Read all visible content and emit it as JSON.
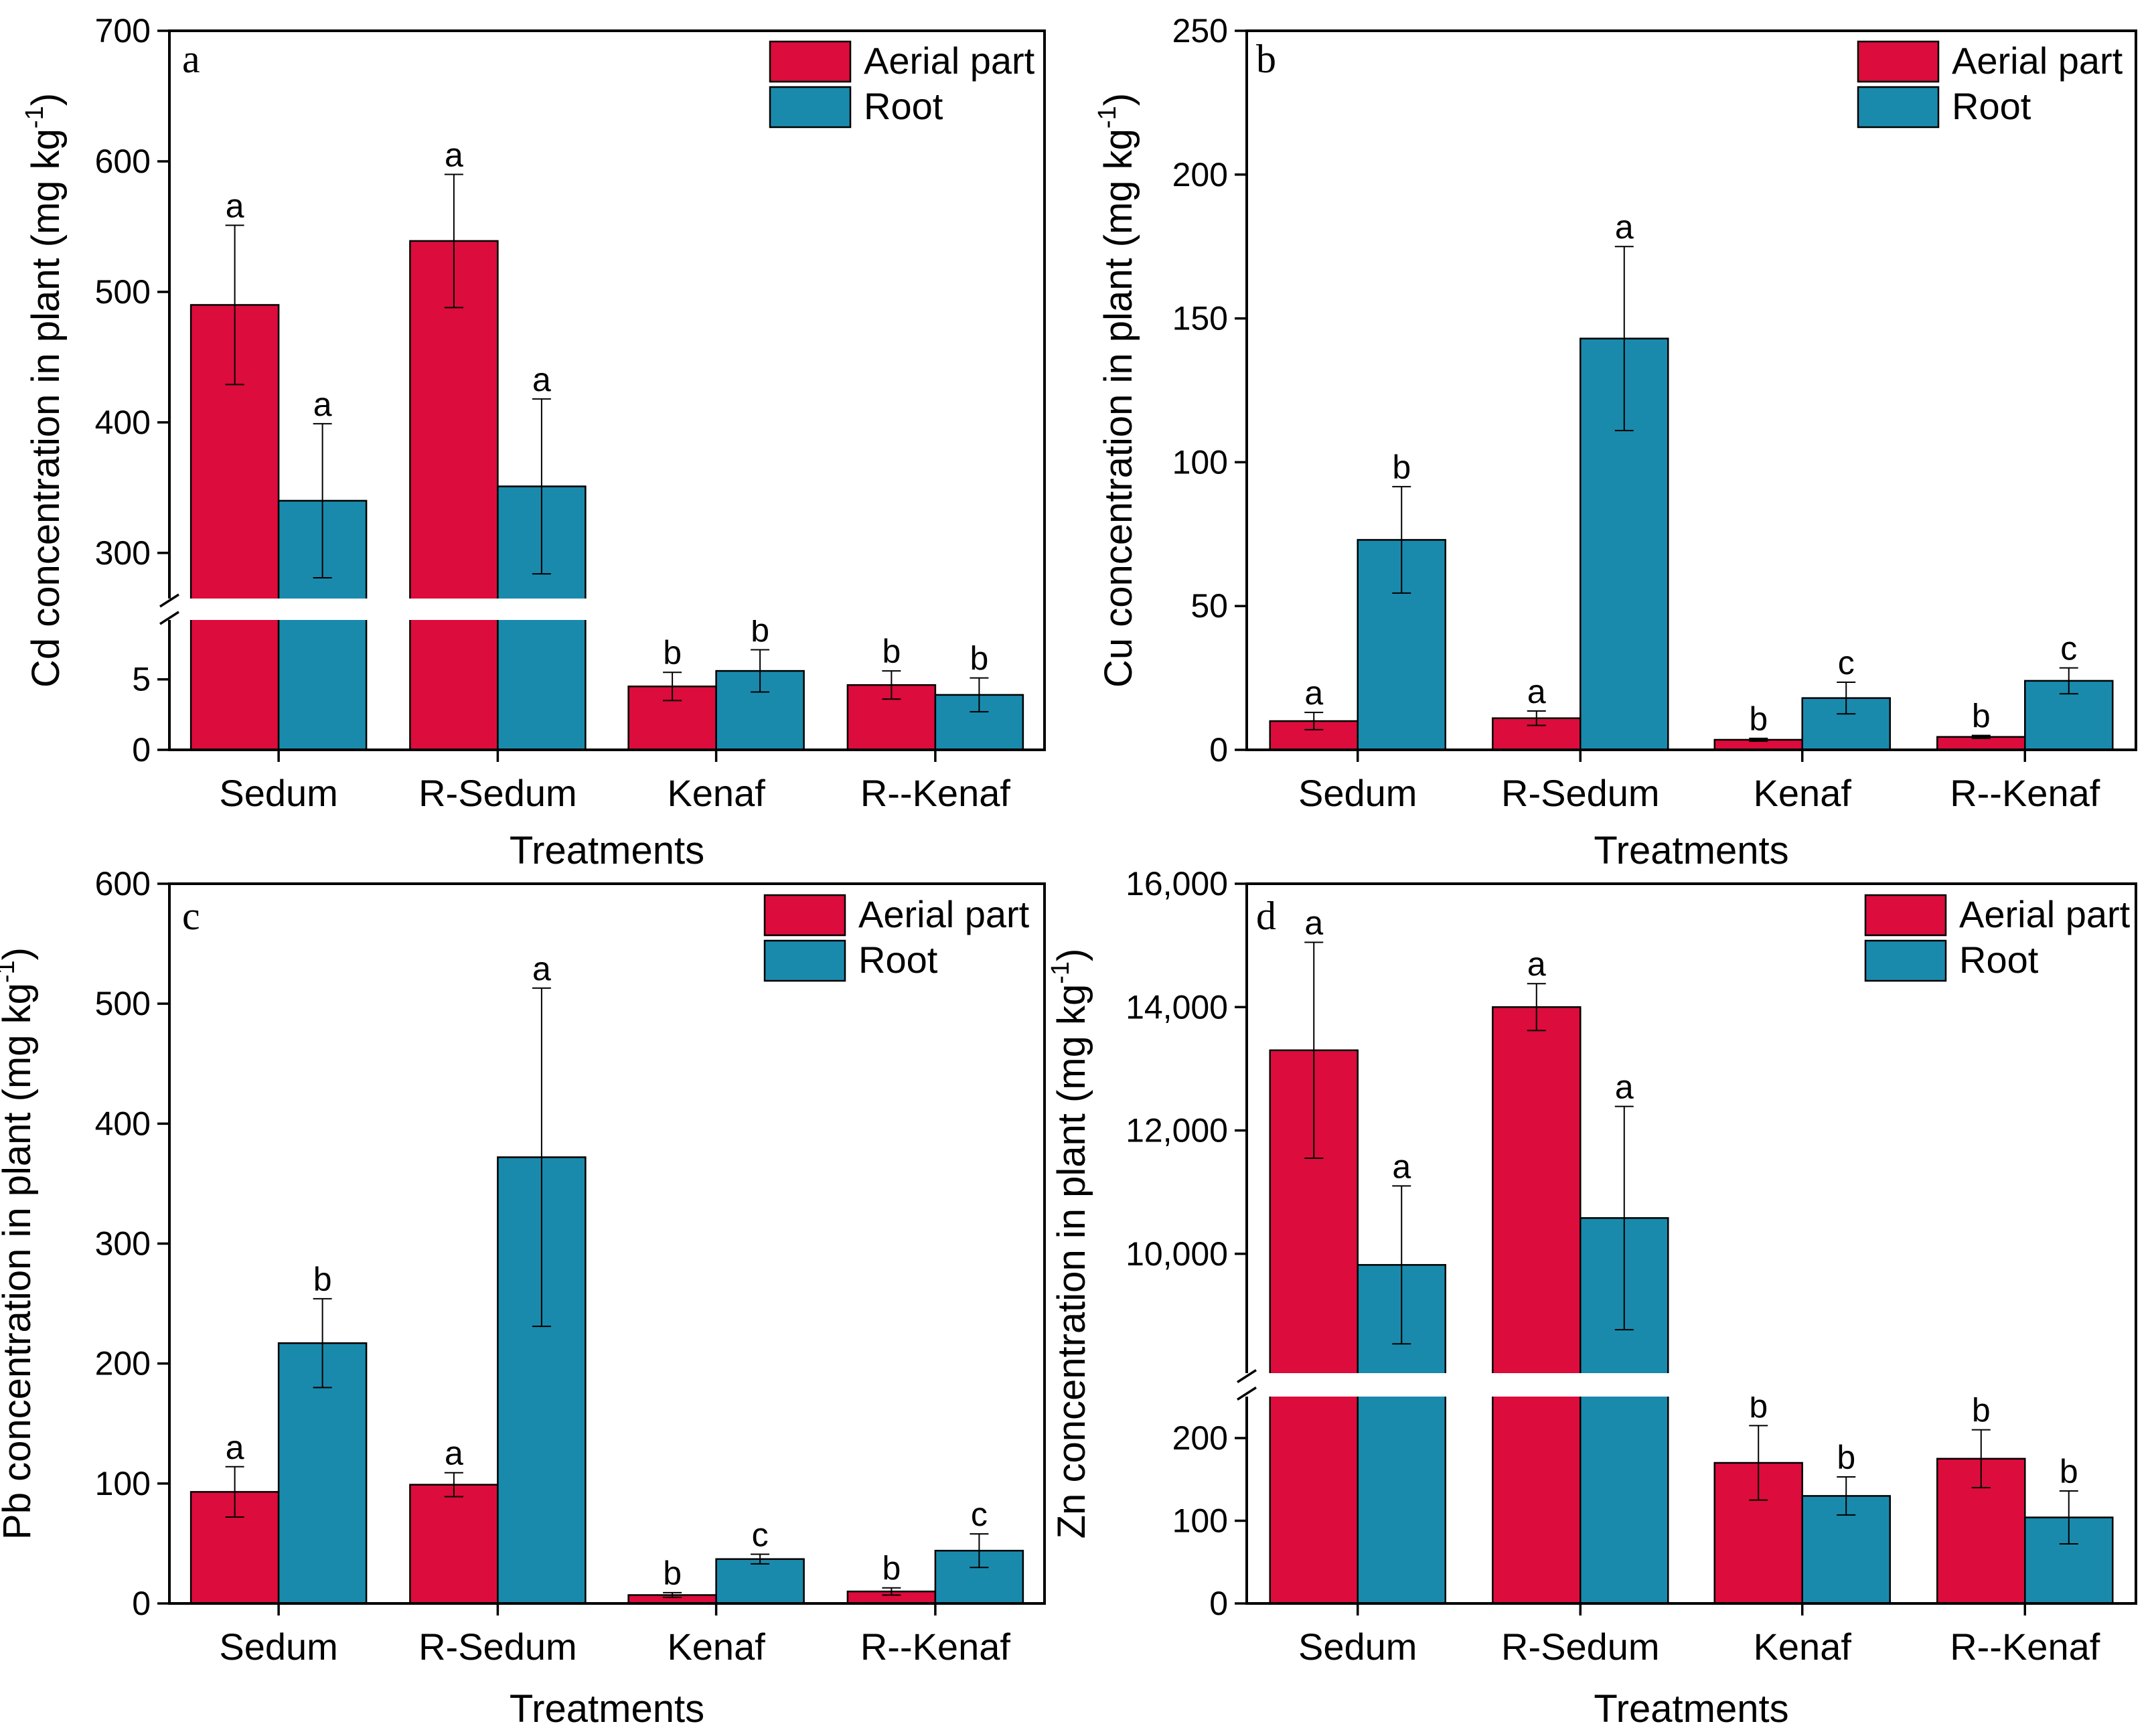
{
  "colors": {
    "aerial": "#dc0c3c",
    "root": "#1a8aac"
  },
  "chart_data": [
    {
      "type": "bar",
      "letter": "a",
      "ylabel": "Cd concentration in plant (mg kg",
      "ylabel_sup": "-1",
      "ylabel_close": ")",
      "xlabel": "Treatments",
      "categories": [
        "Sedum",
        "R-Sedum",
        "Kenaf",
        "R--Kenaf"
      ],
      "axis_break": {
        "lower_range": [
          0,
          9.5
        ],
        "upper_range": [
          262,
          700
        ]
      },
      "yticks": [
        0,
        5,
        300,
        400,
        500,
        600,
        700
      ],
      "ytick_labels": [
        "0",
        "5",
        "300",
        "400",
        "500",
        "600",
        "700"
      ],
      "series": [
        {
          "name": "Aerial part",
          "values": [
            490,
            539,
            4.5,
            4.6
          ],
          "errors": [
            61,
            51,
            1.0,
            1.0
          ],
          "labels": [
            "a",
            "a",
            "b",
            "b"
          ]
        },
        {
          "name": "Root",
          "values": [
            340,
            351,
            5.6,
            3.9
          ],
          "errors": [
            59,
            67,
            1.5,
            1.2
          ],
          "labels": [
            "a",
            "a",
            "b",
            "b"
          ]
        }
      ]
    },
    {
      "type": "bar",
      "letter": "b",
      "ylabel": "Cu concentration in plant (mg kg",
      "ylabel_sup": "-1",
      "ylabel_close": ")",
      "xlabel": "Treatments",
      "categories": [
        "Sedum",
        "R-Sedum",
        "Kenaf",
        "R--Kenaf"
      ],
      "ylim": [
        0,
        250
      ],
      "yticks": [
        0,
        50,
        100,
        150,
        200,
        250
      ],
      "ytick_labels": [
        "0",
        "50",
        "100",
        "150",
        "200",
        "250"
      ],
      "series": [
        {
          "name": "Aerial part",
          "values": [
            10,
            11,
            3.5,
            4.5
          ],
          "errors": [
            3,
            2.5,
            0.5,
            0.5
          ],
          "labels": [
            "a",
            "a",
            "b",
            "b"
          ]
        },
        {
          "name": "Root",
          "values": [
            73,
            143,
            18,
            24
          ],
          "errors": [
            18.5,
            32,
            5.5,
            4.5
          ],
          "labels": [
            "b",
            "a",
            "c",
            "c"
          ]
        }
      ]
    },
    {
      "type": "bar",
      "letter": "c",
      "ylabel": "Pb concentration in plant (mg kg",
      "ylabel_sup": "-1",
      "ylabel_close": ")",
      "xlabel": "Treatments",
      "categories": [
        "Sedum",
        "R-Sedum",
        "Kenaf",
        "R--Kenaf"
      ],
      "ylim": [
        0,
        600
      ],
      "yticks": [
        0,
        100,
        200,
        300,
        400,
        500,
        600
      ],
      "ytick_labels": [
        "0",
        "100",
        "200",
        "300",
        "400",
        "500",
        "600"
      ],
      "series": [
        {
          "name": "Aerial part",
          "values": [
            93,
            99,
            7,
            10
          ],
          "errors": [
            21,
            10,
            2,
            3
          ],
          "labels": [
            "a",
            "a",
            "b",
            "b"
          ]
        },
        {
          "name": "Root",
          "values": [
            217,
            372,
            37,
            44
          ],
          "errors": [
            37,
            141,
            4,
            14
          ],
          "labels": [
            "b",
            "a",
            "c",
            "c"
          ]
        }
      ]
    },
    {
      "type": "bar",
      "letter": "d",
      "ylabel": "Zn concentration in plant (mg kg",
      "ylabel_sup": "-1",
      "ylabel_close": ")",
      "xlabel": "Treatments",
      "categories": [
        "Sedum",
        "R-Sedum",
        "Kenaf",
        "R--Kenaf"
      ],
      "axis_break": {
        "lower_range": [
          0,
          255
        ],
        "upper_range": [
          8000,
          16000
        ]
      },
      "yticks": [
        0,
        100,
        200,
        10000,
        12000,
        14000,
        16000
      ],
      "ytick_labels": [
        "0",
        "100",
        "200",
        "10,000",
        "12,000",
        "14,000",
        "16,000"
      ],
      "series": [
        {
          "name": "Aerial part",
          "values": [
            13300,
            14000,
            170,
            175
          ],
          "errors": [
            1750,
            380,
            45,
            35
          ],
          "labels": [
            "a",
            "a",
            "b",
            "b"
          ]
        },
        {
          "name": "Root",
          "values": [
            9820,
            10580,
            130,
            104
          ],
          "errors": [
            1280,
            1810,
            23,
            32
          ],
          "labels": [
            "a",
            "a",
            "b",
            "b"
          ]
        }
      ]
    }
  ]
}
